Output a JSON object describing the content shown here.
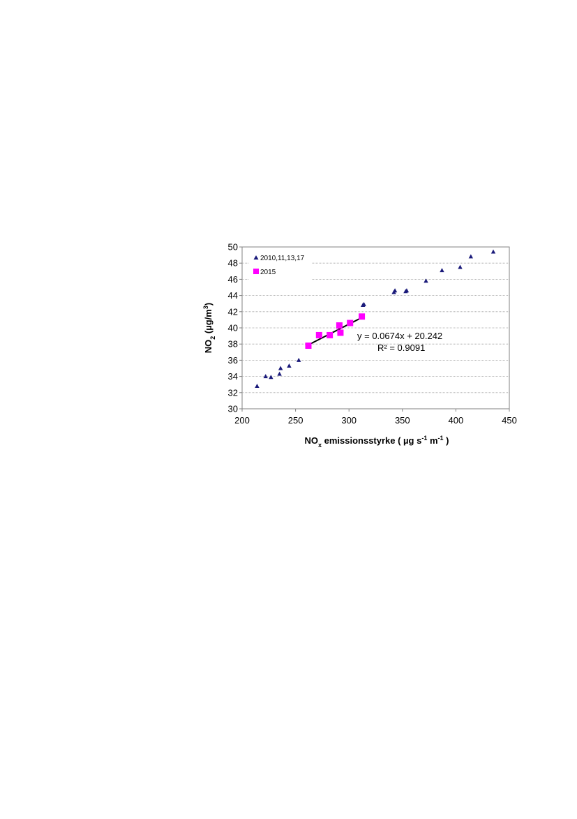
{
  "chart_data": {
    "type": "scatter",
    "xlabel": {
      "main": "NO",
      "sub": "x",
      "rest": " emissionsstyrke ( µg s",
      "sup1": "-1",
      "mid": " m",
      "sup2": "-1",
      "end": " )"
    },
    "ylabel": {
      "main": "NO",
      "sub": "2",
      "rest": " (µg/m",
      "sup": "3",
      "end": ")"
    },
    "xlim": [
      200,
      450
    ],
    "ylim": [
      30,
      50
    ],
    "x_ticks": [
      200,
      250,
      300,
      350,
      400,
      450
    ],
    "y_ticks": [
      30,
      32,
      34,
      36,
      38,
      40,
      42,
      44,
      46,
      48,
      50
    ],
    "grid": "horizontal",
    "legend_position": "top-left",
    "series": [
      {
        "name": "2010,11,13,17",
        "marker": "triangle",
        "color": "#1a1a7a",
        "points": [
          [
            214,
            32.8
          ],
          [
            222,
            34.0
          ],
          [
            227,
            33.9
          ],
          [
            235,
            34.3
          ],
          [
            236,
            35.0
          ],
          [
            244,
            35.3
          ],
          [
            253,
            36.0
          ],
          [
            313,
            42.8
          ],
          [
            314,
            42.9
          ],
          [
            342,
            44.4
          ],
          [
            343,
            44.6
          ],
          [
            353,
            44.5
          ],
          [
            354,
            44.6
          ],
          [
            372,
            45.8
          ],
          [
            387,
            47.1
          ],
          [
            404,
            47.5
          ],
          [
            414,
            48.8
          ],
          [
            435,
            49.4
          ]
        ]
      },
      {
        "name": "2015",
        "marker": "square",
        "color": "#ff00ff",
        "points": [
          [
            262,
            37.8
          ],
          [
            272,
            39.1
          ],
          [
            282,
            39.1
          ],
          [
            291,
            40.3
          ],
          [
            292,
            39.4
          ],
          [
            301,
            40.6
          ],
          [
            312,
            41.4
          ]
        ]
      }
    ],
    "trendline": {
      "color": "#000000",
      "slope": 0.0674,
      "intercept": 20.242,
      "x_range": [
        262,
        312
      ],
      "equation": "y = 0.0674x + 20.242",
      "r2": "R² = 0.9091"
    }
  }
}
